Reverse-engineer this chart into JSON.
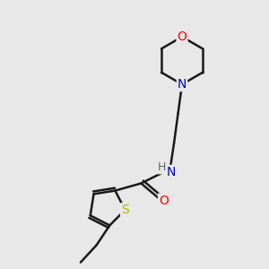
{
  "background_color": "#e8e8e8",
  "bond_color": "#1a1a1a",
  "atom_colors": {
    "S": "#b8b800",
    "O": "#ff0000",
    "N": "#0000cc",
    "H": "#606060",
    "C": "#1a1a1a"
  },
  "figsize": [
    3.0,
    3.0
  ],
  "dpi": 100,
  "xlim": [
    0,
    10
  ],
  "ylim": [
    0,
    10
  ]
}
